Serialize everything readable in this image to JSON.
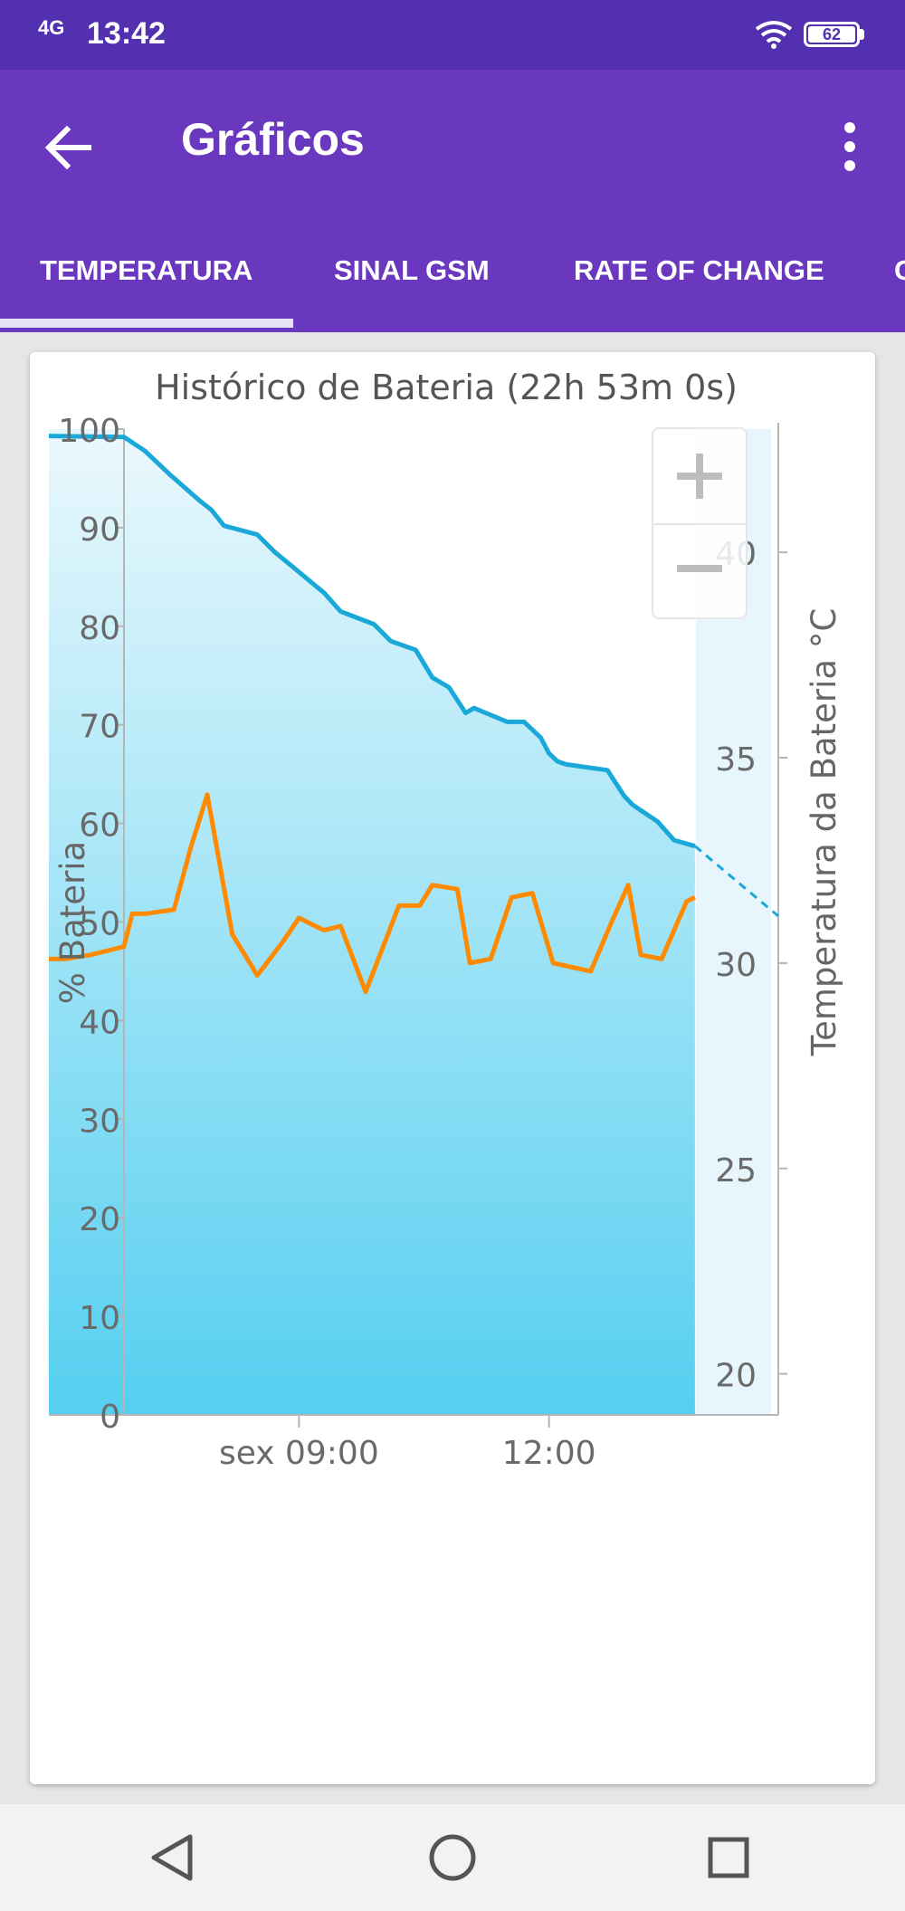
{
  "status_bar": {
    "signal": "4G",
    "time": "13:42",
    "battery": "62"
  },
  "app_bar": {
    "title": "Gráficos",
    "back_icon": "arrow-left-icon",
    "menu_icon": "more-vertical-icon"
  },
  "tabs": [
    {
      "label": "TEMPERATURA",
      "active": true
    },
    {
      "label": "SINAL GSM",
      "active": false
    },
    {
      "label": "RATE OF CHANGE",
      "active": false
    },
    {
      "label": "C",
      "active": false
    }
  ],
  "zoom": {
    "in_label": "+",
    "out_label": "−"
  },
  "colors": {
    "accent": "#6a38bf",
    "status": "#5230b0",
    "battery_line": "#1aa8d8",
    "temp_line": "#ff8a00",
    "axis_text": "#6a6a6a"
  },
  "chart_data": {
    "type": "line",
    "title": "Histórico de Bateria (22h 53m 0s)",
    "y_left_label": "% Bateria",
    "y_right_label": "Temperatura da Bateria °C",
    "y_left_ticks": [
      "100",
      "90",
      "80",
      "70",
      "60",
      "50",
      "40",
      "30",
      "20",
      "10",
      "0"
    ],
    "y_right_ticks": [
      "40",
      "35",
      "30",
      "25",
      "20"
    ],
    "x_ticks": [
      "sex 09:00",
      "12:00"
    ],
    "ylim_left": [
      0,
      100
    ],
    "ylim_right": [
      19,
      43
    ],
    "x_unit": "hours",
    "xlim": [
      6.0,
      14.75
    ],
    "series": [
      {
        "axis": "left",
        "color": "#1aa8d8",
        "x": [
          6.0,
          6.9,
          7.15,
          7.45,
          7.8,
          7.95,
          8.1,
          8.5,
          8.7,
          9.2,
          9.3,
          9.5,
          9.9,
          10.1,
          10.4,
          10.6,
          10.8,
          11.0,
          11.1,
          11.5,
          11.7,
          11.9,
          12.0,
          12.1,
          12.2,
          12.7,
          12.9,
          13.0,
          13.3,
          13.5,
          13.75
        ],
        "y": [
          99.3,
          99.2,
          97.8,
          95.4,
          92.8,
          91.8,
          90.2,
          89.3,
          87.6,
          84.1,
          83.4,
          81.5,
          80.2,
          78.5,
          77.6,
          74.8,
          73.8,
          71.2,
          71.7,
          70.3,
          70.3,
          68.7,
          67.1,
          66.3,
          66.0,
          65.4,
          62.8,
          61.9,
          60.2,
          58.3,
          57.7
        ]
      },
      {
        "axis": "left",
        "color": "#1aa8d8",
        "dashed": true,
        "name": "",
        "x": [
          13.75,
          14.75
        ],
        "y": [
          57.7,
          50.6
        ]
      },
      {
        "axis": "right",
        "color": "#ff8a00",
        "x": [
          6.0,
          6.2,
          6.5,
          6.9,
          7.0,
          7.15,
          7.5,
          7.7,
          7.9,
          8.2,
          8.5,
          8.8,
          9.0,
          9.3,
          9.5,
          9.8,
          10.2,
          10.45,
          10.6,
          10.9,
          11.05,
          11.3,
          11.55,
          11.8,
          12.05,
          12.5,
          12.75,
          12.95,
          13.1,
          13.35,
          13.65,
          13.75
        ],
        "y": [
          30.1,
          30.1,
          30.2,
          30.4,
          31.2,
          31.2,
          31.3,
          32.8,
          34.1,
          30.7,
          29.7,
          30.5,
          31.1,
          30.8,
          30.9,
          29.3,
          31.4,
          31.4,
          31.9,
          31.8,
          30.0,
          30.1,
          31.6,
          31.7,
          30.0,
          29.8,
          31.0,
          31.9,
          30.2,
          30.1,
          31.5,
          31.6
        ]
      }
    ]
  }
}
